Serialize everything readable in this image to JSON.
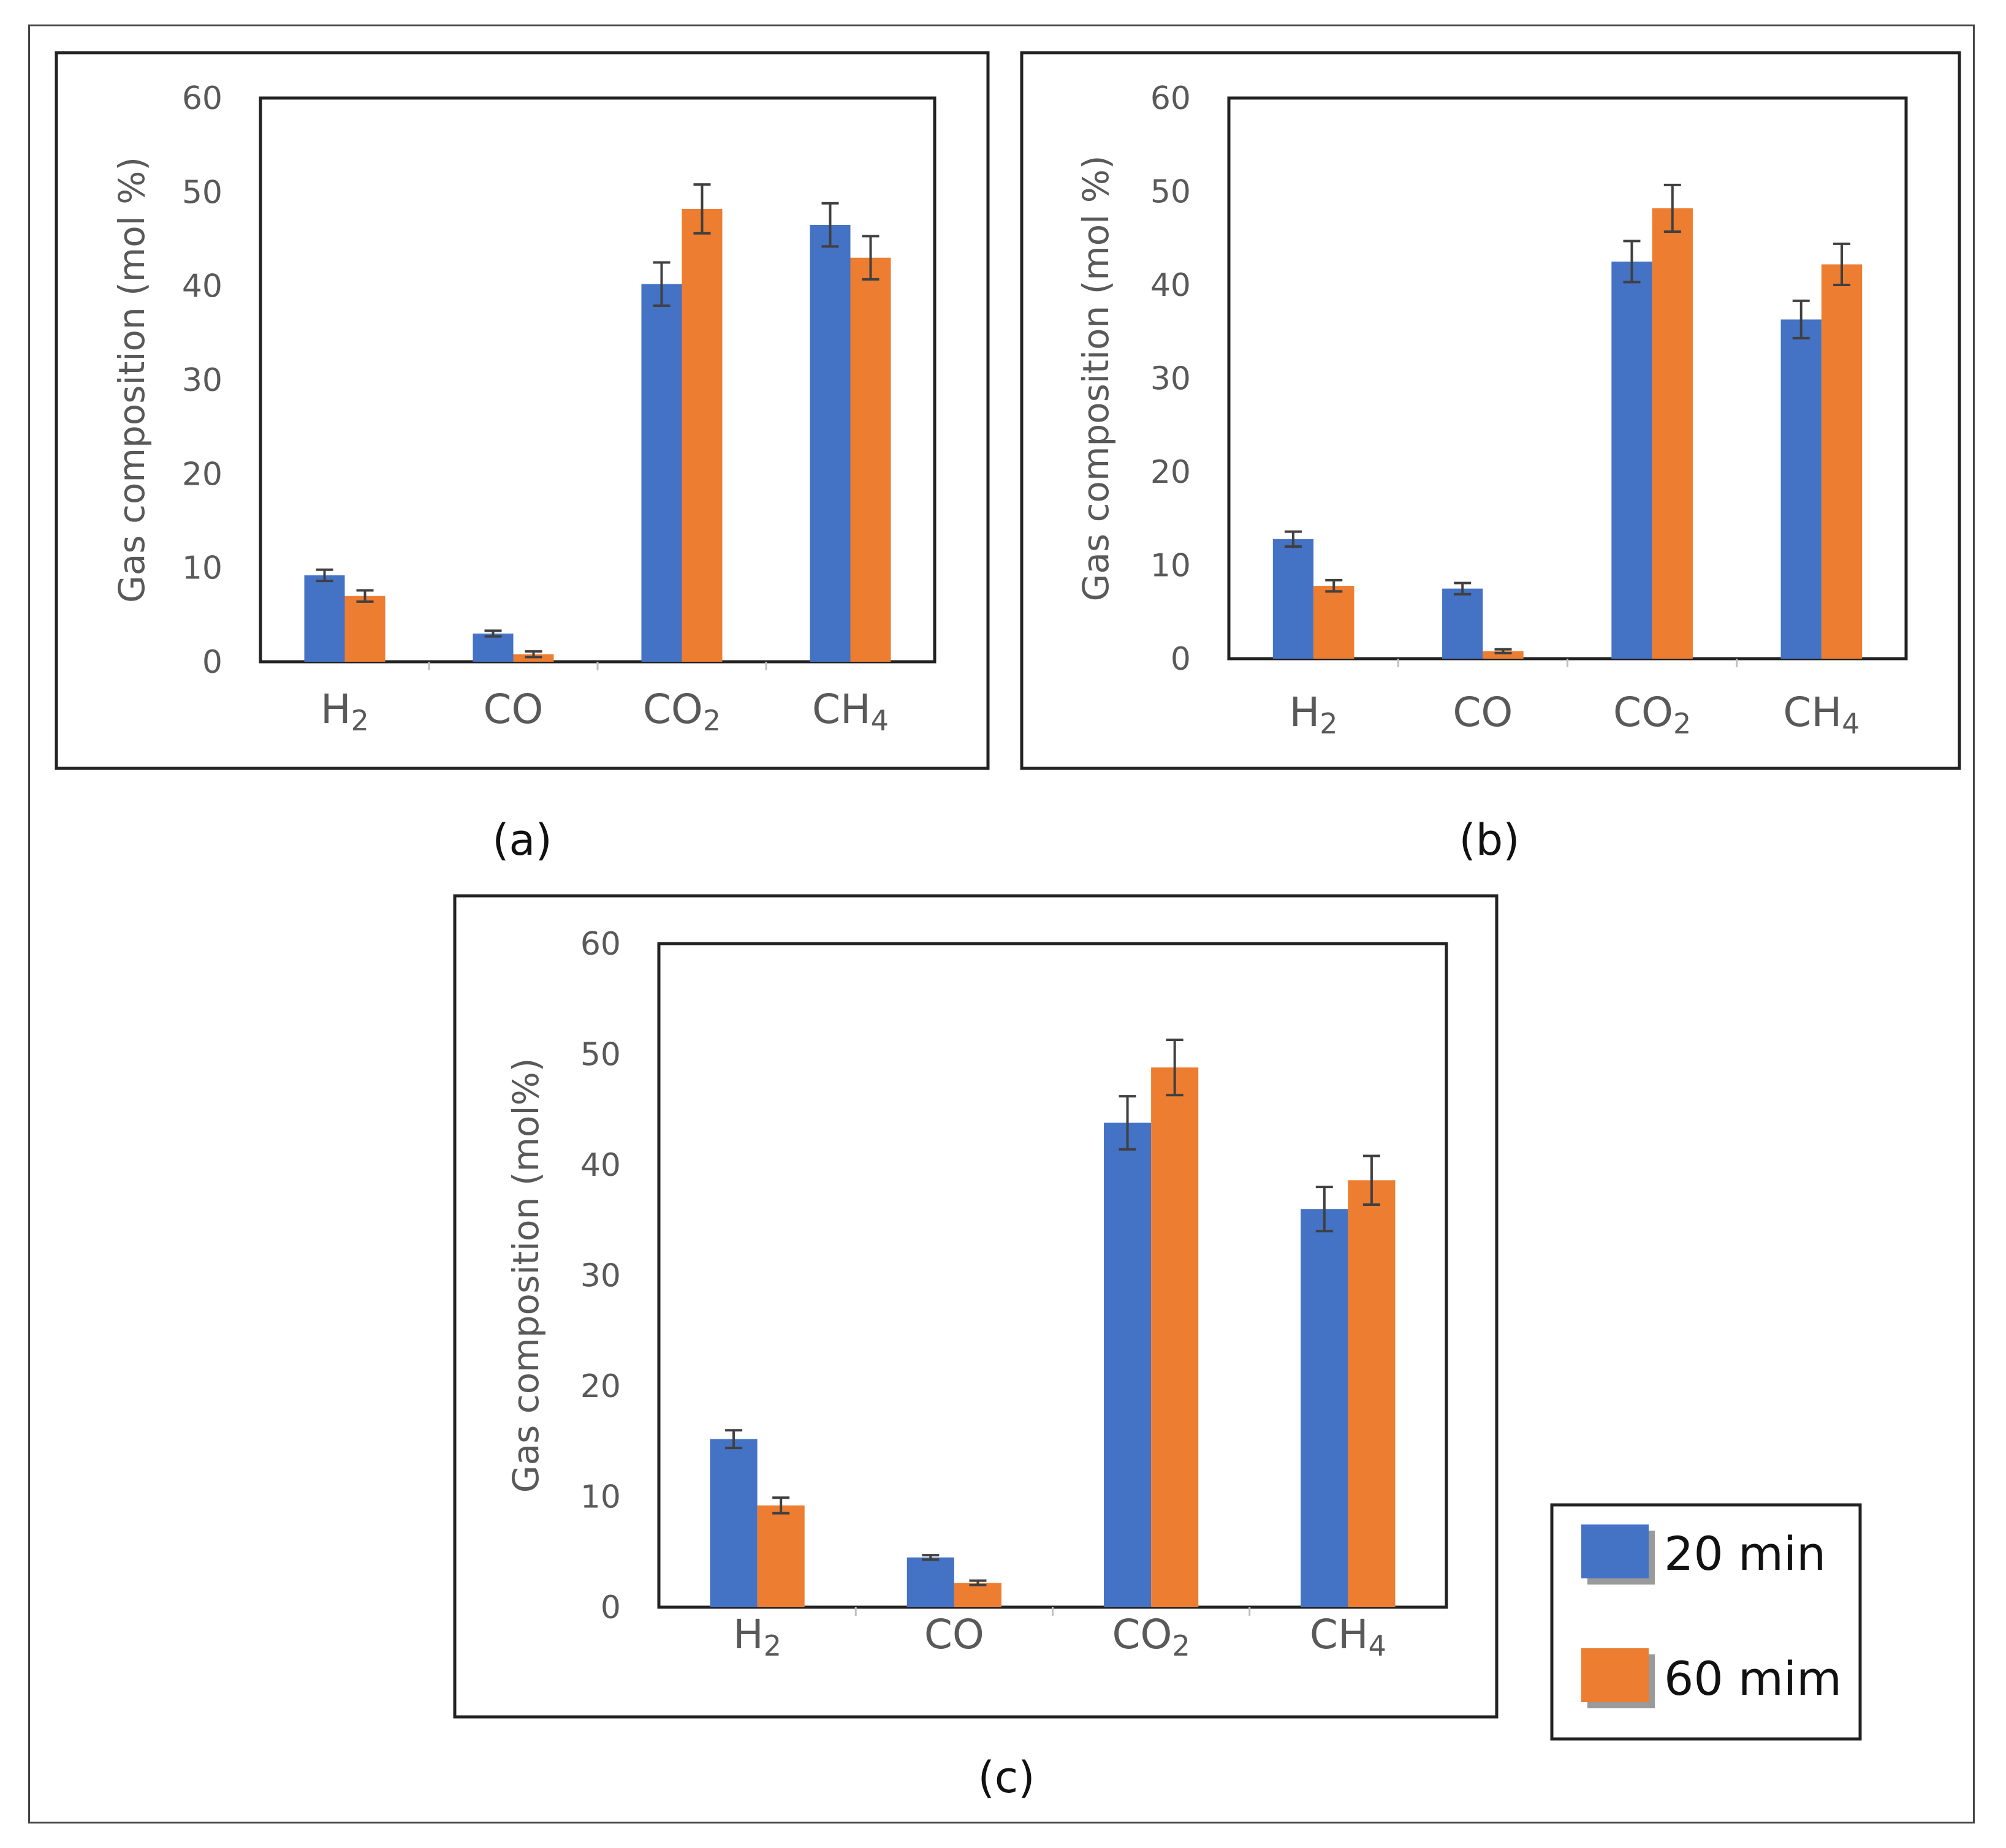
{
  "figure": {
    "legend": {
      "entries": [
        {
          "label": "20 min",
          "color": "#4472c4"
        },
        {
          "label": "60 mim",
          "color": "#ed7d31"
        }
      ]
    }
  },
  "chart_data": [
    {
      "type": "bar",
      "panel_label": "(a)",
      "ylabel": "Gas composition (mol %)",
      "xlabel": "",
      "ylim": [
        0,
        60
      ],
      "yticks": [
        0,
        10,
        20,
        30,
        40,
        50,
        60
      ],
      "categories": [
        {
          "base": "H",
          "sub": "2"
        },
        {
          "base": "CO",
          "sub": ""
        },
        {
          "base": "CO",
          "sub": "2"
        },
        {
          "base": "CH",
          "sub": "4"
        }
      ],
      "series": [
        {
          "name": "20 min",
          "color": "#4472c4",
          "values": [
            9.2,
            3.0,
            40.2,
            46.5
          ],
          "errors": [
            0.6,
            0.3,
            2.3,
            2.3
          ]
        },
        {
          "name": "60 mim",
          "color": "#ed7d31",
          "values": [
            7.0,
            0.8,
            48.2,
            43.0
          ],
          "errors": [
            0.6,
            0.3,
            2.6,
            2.3
          ]
        }
      ]
    },
    {
      "type": "bar",
      "panel_label": "(b)",
      "ylabel": "Gas composition (mol %)",
      "xlabel": "",
      "ylim": [
        0,
        60
      ],
      "yticks": [
        0,
        10,
        20,
        30,
        40,
        50,
        60
      ],
      "categories": [
        {
          "base": "H",
          "sub": "2"
        },
        {
          "base": "CO",
          "sub": ""
        },
        {
          "base": "CO",
          "sub": "2"
        },
        {
          "base": "CH",
          "sub": "4"
        }
      ],
      "series": [
        {
          "name": "20 min",
          "color": "#4472c4",
          "values": [
            12.8,
            7.5,
            42.5,
            36.3
          ],
          "errors": [
            0.8,
            0.6,
            2.2,
            2.0
          ]
        },
        {
          "name": "60 mim",
          "color": "#ed7d31",
          "values": [
            7.8,
            0.8,
            48.2,
            42.2
          ],
          "errors": [
            0.6,
            0.2,
            2.5,
            2.2
          ]
        }
      ]
    },
    {
      "type": "bar",
      "panel_label": "(c)",
      "ylabel": "Gas composition (mol%)",
      "xlabel": "",
      "ylim": [
        0,
        60
      ],
      "yticks": [
        0,
        10,
        20,
        30,
        40,
        50,
        60
      ],
      "categories": [
        {
          "base": "H",
          "sub": "2"
        },
        {
          "base": "CO",
          "sub": ""
        },
        {
          "base": "CO",
          "sub": "2"
        },
        {
          "base": "CH",
          "sub": "4"
        }
      ],
      "series": [
        {
          "name": "20 min",
          "color": "#4472c4",
          "values": [
            15.2,
            4.5,
            43.8,
            36.0
          ],
          "errors": [
            0.8,
            0.2,
            2.4,
            2.0
          ]
        },
        {
          "name": "60 mim",
          "color": "#ed7d31",
          "values": [
            9.2,
            2.2,
            48.8,
            38.6
          ],
          "errors": [
            0.7,
            0.2,
            2.5,
            2.2
          ]
        }
      ]
    }
  ]
}
